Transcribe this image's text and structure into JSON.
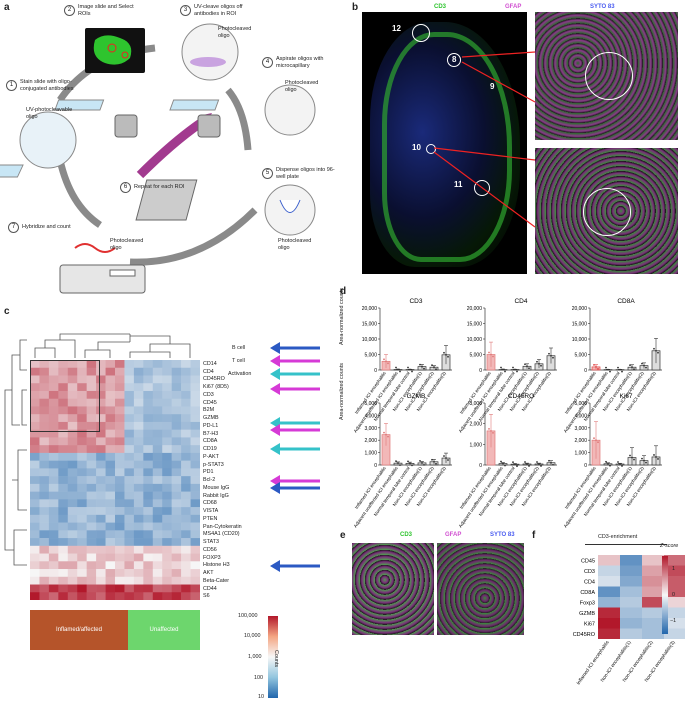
{
  "panel_labels": {
    "a": "a",
    "b": "b",
    "c": "c",
    "d": "d",
    "e": "e",
    "f": "f"
  },
  "panel_a": {
    "steps": [
      {
        "num": "1",
        "text": "Stain slide with oligo-conjugated antibodies"
      },
      {
        "num": "2",
        "text": "Image slide and Select ROIs"
      },
      {
        "num": "3",
        "text": "UV-cleave oligos off antibodies in ROI"
      },
      {
        "num": "4",
        "text": "Aspirate oligos with microcapillary"
      },
      {
        "num": "5",
        "text": "Dispense oligos into 96-well plate"
      },
      {
        "num": "6",
        "text": "Repeat for each ROI"
      },
      {
        "num": "7",
        "text": "Hybridize and count"
      }
    ],
    "labels": {
      "uv_oligo": "UV-photocleavable oligo",
      "photocleaved_3": "Photocleaved oligo",
      "photocleaved_4": "Photocleaved oligo",
      "photocleaved_5": "Photocleaved oligo",
      "photocleaved_7": "Photocleaved oligo"
    }
  },
  "panel_b": {
    "marker_cd3": "CD3",
    "marker_gfap": "GFAP",
    "marker_syto": "SYTO 83",
    "rois": [
      "12",
      "8",
      "9",
      "10",
      "11"
    ]
  },
  "panel_c": {
    "genes": [
      "CD14",
      "CD4",
      "CD45RO",
      "Ki67 (8D5)",
      "CD3",
      "CD45",
      "B2M",
      "GZMB",
      "PD-L1",
      "B7-H3",
      "CD8A",
      "CD19",
      "P-AKT",
      "p-STAT3",
      "PD1",
      "Bcl-2",
      "Mouse IgG",
      "Rabbit IgG",
      "CD68",
      "VISTA",
      "PTEN",
      "Pan-Cytokeratin",
      "MS4A1 (CD20)",
      "STAT3",
      "CD56",
      "FOXP3",
      "Histone H3",
      "AKT",
      "Beta-Cater",
      "CD44",
      "S6"
    ],
    "legend_arrows": [
      "B cell",
      "T cell",
      "Activation"
    ],
    "groups": [
      "Inflamed/affected",
      "Unaffected"
    ],
    "colorbar_ticks": [
      "100,000",
      "10,000",
      "1,000",
      "100",
      "10"
    ],
    "colorbar_title": "Counts",
    "colors": {
      "b_cell": "#2b59c3",
      "t_cell": "#d63ad6",
      "activation": "#35c2c9",
      "inflamed": "#b5542a",
      "unaffected": "#6dd66d"
    }
  },
  "panel_d": {
    "ylabel": "Area-normalized counts",
    "categories": [
      "Inflamed ICI encephalitis",
      "Adjacent unaffected ICI encephalitis",
      "Normal temporal lobe control",
      "Non-ICI encephalitis(1)",
      "Non-ICI encephalitis(2)",
      "Non-ICI encephalitis(3)"
    ]
  },
  "chart_data": [
    {
      "type": "bar",
      "title": "CD3",
      "ylim": [
        0,
        20000
      ],
      "ticks": [
        "0",
        "5,000",
        "10,000",
        "15,000",
        "20,000"
      ],
      "values": [
        2800,
        150,
        150,
        1100,
        900,
        4900
      ],
      "errors": [
        2200,
        150,
        100,
        700,
        500,
        3000
      ],
      "colors": [
        "#e07a7a",
        "#333",
        "#333",
        "#333",
        "#333",
        "#333"
      ]
    },
    {
      "type": "bar",
      "title": "CD4",
      "ylim": [
        0,
        20000
      ],
      "ticks": [
        "0",
        "5,000",
        "10,000",
        "15,000",
        "20,000"
      ],
      "values": [
        5000,
        150,
        150,
        1200,
        2000,
        4600
      ],
      "errors": [
        4000,
        150,
        100,
        800,
        1400,
        2500
      ],
      "colors": [
        "#e07a7a",
        "#333",
        "#333",
        "#333",
        "#333",
        "#333"
      ]
    },
    {
      "type": "bar",
      "title": "CD8A",
      "ylim": [
        0,
        20000
      ],
      "ticks": [
        "0",
        "5,000",
        "10,000",
        "15,000",
        "20,000"
      ],
      "values": [
        1000,
        120,
        120,
        900,
        1400,
        6200
      ],
      "errors": [
        700,
        100,
        100,
        800,
        900,
        4000
      ],
      "colors": [
        "#e04444",
        "#333",
        "#333",
        "#333",
        "#333",
        "#333"
      ]
    },
    {
      "type": "bar",
      "title": "GZMB",
      "ylim": [
        0,
        5000
      ],
      "ticks": [
        "0",
        "1,000",
        "2,000",
        "3,000",
        "4,000",
        "5,000"
      ],
      "values": [
        2450,
        150,
        130,
        170,
        260,
        560
      ],
      "errors": [
        900,
        100,
        100,
        120,
        200,
        400
      ],
      "colors": [
        "#e07a7a",
        "#333",
        "#333",
        "#333",
        "#333",
        "#333"
      ]
    },
    {
      "type": "bar",
      "title": "CD45RO",
      "ylim": [
        0,
        3000
      ],
      "ticks": [
        "0",
        "1,000",
        "2,000",
        "3,000"
      ],
      "values": [
        1650,
        70,
        40,
        50,
        50,
        110
      ],
      "errors": [
        800,
        50,
        30,
        40,
        40,
        100
      ],
      "colors": [
        "#e07a7a",
        "#333",
        "#333",
        "#333",
        "#333",
        "#333"
      ]
    },
    {
      "type": "bar",
      "title": "Ki67",
      "ylim": [
        0,
        5000
      ],
      "ticks": [
        "0",
        "1,000",
        "2,000",
        "3,000",
        "4,000",
        "5,000"
      ],
      "values": [
        2000,
        100,
        80,
        600,
        350,
        650
      ],
      "errors": [
        1500,
        80,
        60,
        800,
        400,
        900
      ],
      "colors": [
        "#e07a7a",
        "#333",
        "#333",
        "#333",
        "#333",
        "#333"
      ]
    }
  ],
  "panel_e": {
    "marker_cd3": "CD3",
    "marker_gfap": "GFAP",
    "marker_syto": "SYTO 83"
  },
  "panel_f": {
    "header": "CD3-enrichment",
    "zscore_title": "Z-score",
    "rows": [
      "CD45",
      "CD3",
      "CD4",
      "CD8A",
      "Foxp3",
      "GZMB",
      "Ki67",
      "CD45RO"
    ],
    "cols": [
      "Inflamed ICI encephalitis",
      "Non-ICI encephalitis(1)",
      "Non-ICI encephalitis(2)",
      "Non-ICI encephalitis(3)"
    ],
    "zticks": [
      "1",
      "0",
      "−1"
    ],
    "z": [
      [
        0.3,
        -0.9,
        0.3,
        0.8
      ],
      [
        -0.3,
        -0.8,
        0.5,
        1.0
      ],
      [
        -0.2,
        -0.7,
        0.6,
        0.9
      ],
      [
        -0.9,
        -0.5,
        0.5,
        0.9
      ],
      [
        -0.6,
        -0.4,
        1.0,
        0.2
      ],
      [
        1.2,
        -0.5,
        -0.4,
        -0.3
      ],
      [
        1.3,
        -0.6,
        -0.5,
        -0.2
      ],
      [
        1.2,
        -0.4,
        -0.5,
        -0.3
      ]
    ]
  }
}
